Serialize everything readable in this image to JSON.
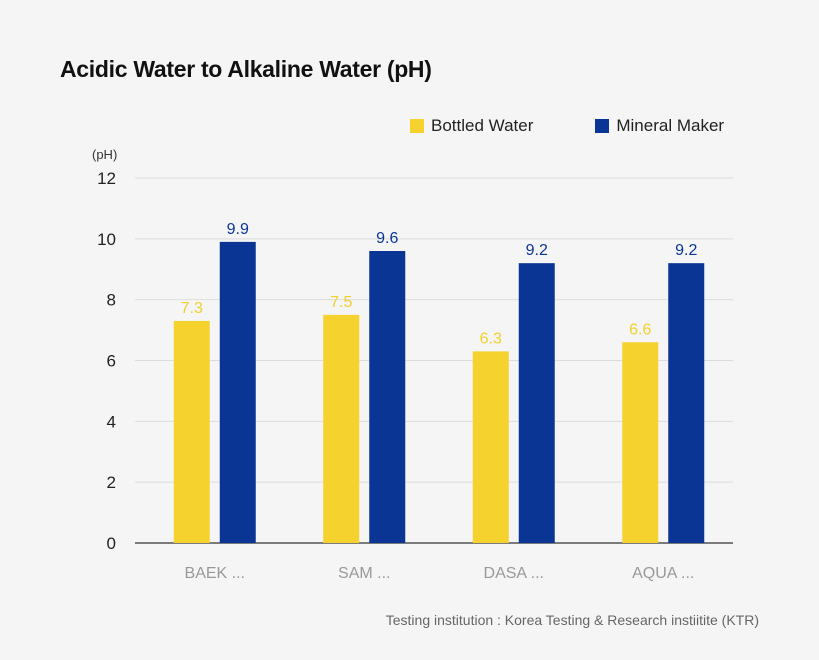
{
  "chart_data": {
    "type": "bar",
    "title": "Acidic Water to Alkaline Water  (pH)",
    "ylabel": "(pH)",
    "categories": [
      "BAEK ...",
      "SAM ...",
      "DASA ...",
      "AQUA ..."
    ],
    "series": [
      {
        "name": "Bottled Water",
        "values": [
          7.3,
          7.5,
          6.3,
          6.6
        ],
        "labels": [
          "7.3",
          "7.5",
          "6.3",
          "6.6"
        ],
        "color": "#f5d22e",
        "label_color": "#f3cf2a"
      },
      {
        "name": "Mineral Maker",
        "values": [
          9.9,
          9.6,
          9.2,
          9.2
        ],
        "labels": [
          "9.9",
          "9.6",
          "9.2",
          "9.2"
        ],
        "color": "#0b3594",
        "label_color": "#0b3594"
      }
    ],
    "ylim": [
      0,
      12
    ],
    "yticks": [
      "0",
      "2",
      "4",
      "6",
      "8",
      "10",
      "12"
    ],
    "grid": true,
    "legend": "top-right"
  },
  "footnote": "Testing institution : Korea Testing & Research instiitite (KTR)"
}
